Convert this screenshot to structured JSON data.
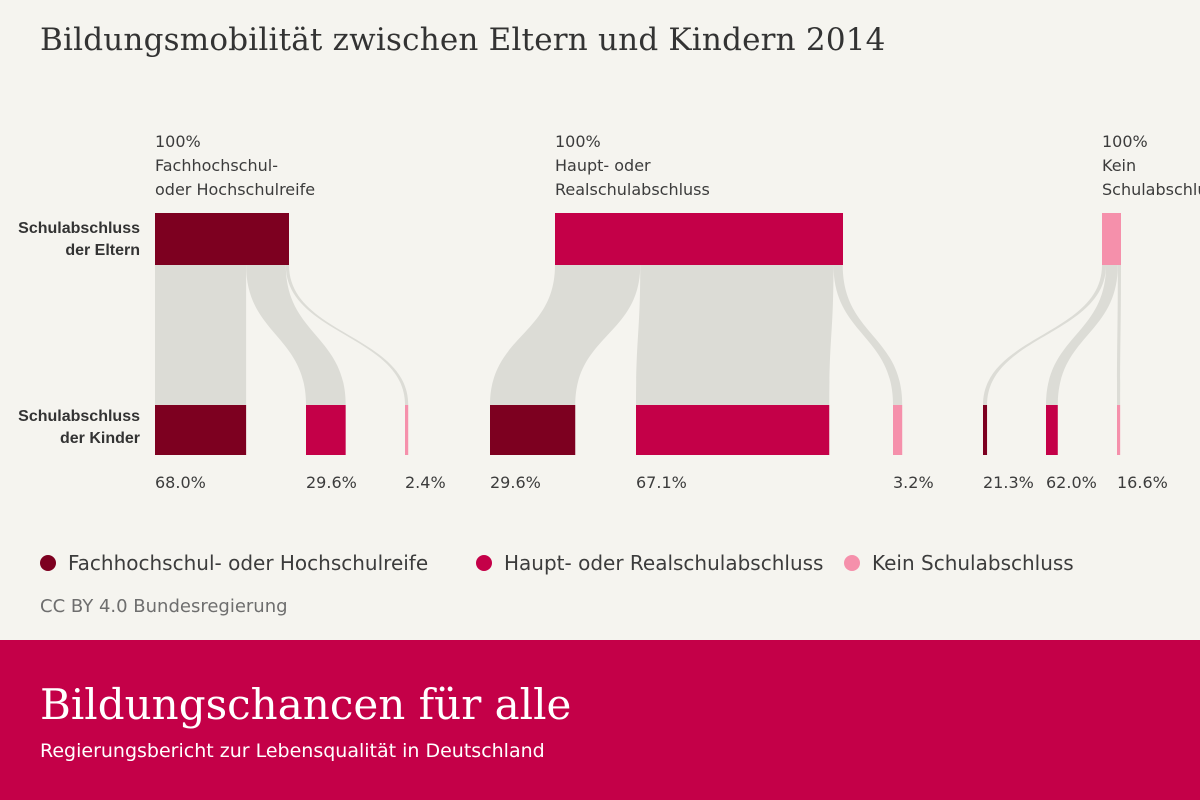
{
  "title": "Bildungsmobilität zwischen Eltern und Kindern 2014",
  "row_labels": {
    "parents": [
      "Schulabschluss",
      "der Eltern"
    ],
    "children": [
      "Schulabschluss",
      "der Kinder"
    ]
  },
  "legend": [
    {
      "label": "Fachhochschul- oder Hochschulreife",
      "color": "#7d0020"
    },
    {
      "label": "Haupt- oder Realschulabschluss",
      "color": "#c40048"
    },
    {
      "label": "Kein Schulabschluss",
      "color": "#f590ab"
    }
  ],
  "flow_color": "#dcdcd6",
  "source": "CC BY 4.0 Bundesregierung",
  "footer": {
    "title": "Bildungschancen für alle",
    "subtitle": "Regierungsbericht zur Lebensqualität in Deutschland"
  },
  "chart_data": {
    "type": "sankey",
    "title": "Bildungsmobilität zwischen Eltern und Kindern 2014",
    "unit": "%",
    "groups": [
      {
        "parent_label": [
          "100%",
          "Fachhochschul-",
          "oder Hochschulreife"
        ],
        "parent_category": "Fachhochschul- oder Hochschulreife",
        "parent_value": 100,
        "children": [
          {
            "category": "Fachhochschul- oder Hochschulreife",
            "value": 68.0,
            "label": "68.0%"
          },
          {
            "category": "Haupt- oder Realschulabschluss",
            "value": 29.6,
            "label": "29.6%"
          },
          {
            "category": "Kein Schulabschluss",
            "value": 2.4,
            "label": "2.4%"
          }
        ]
      },
      {
        "parent_label": [
          "100%",
          "Haupt- oder",
          "Realschulabschluss"
        ],
        "parent_category": "Haupt- oder Realschulabschluss",
        "parent_value": 100,
        "children": [
          {
            "category": "Fachhochschul- oder Hochschulreife",
            "value": 29.6,
            "label": "29.6%"
          },
          {
            "category": "Haupt- oder Realschulabschluss",
            "value": 67.1,
            "label": "67.1%"
          },
          {
            "category": "Kein Schulabschluss",
            "value": 3.2,
            "label": "3.2%"
          }
        ]
      },
      {
        "parent_label": [
          "100%",
          "Kein",
          "Schulabschluss"
        ],
        "parent_category": "Kein Schulabschluss",
        "parent_value": 100,
        "children": [
          {
            "category": "Fachhochschul- oder Hochschulreife",
            "value": 21.3,
            "label": "21.3%"
          },
          {
            "category": "Haupt- oder Realschulabschluss",
            "value": 62.0,
            "label": "62.0%"
          },
          {
            "category": "Kein Schulabschluss",
            "value": 16.6,
            "label": "16.6%"
          }
        ]
      }
    ]
  }
}
